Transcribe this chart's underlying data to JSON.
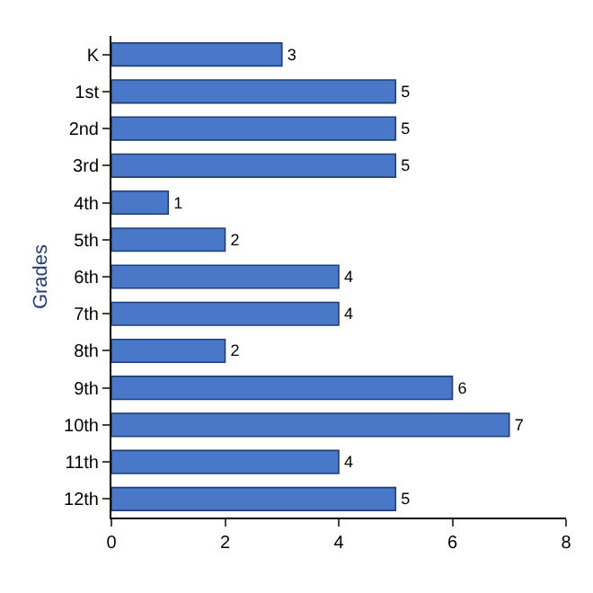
{
  "chart_data": {
    "type": "bar",
    "orientation": "horizontal",
    "ylabel": "Grades",
    "categories": [
      "K",
      "1st",
      "2nd",
      "3rd",
      "4th",
      "5th",
      "6th",
      "7th",
      "8th",
      "9th",
      "10th",
      "11th",
      "12th"
    ],
    "values": [
      3,
      5,
      5,
      5,
      1,
      2,
      4,
      4,
      2,
      6,
      7,
      4,
      5
    ],
    "color": "#4a78c8",
    "xlim": [
      0,
      8
    ],
    "xticks": [
      0,
      2,
      4,
      6,
      8
    ],
    "grid": false,
    "legend": false,
    "data_labels": true
  }
}
